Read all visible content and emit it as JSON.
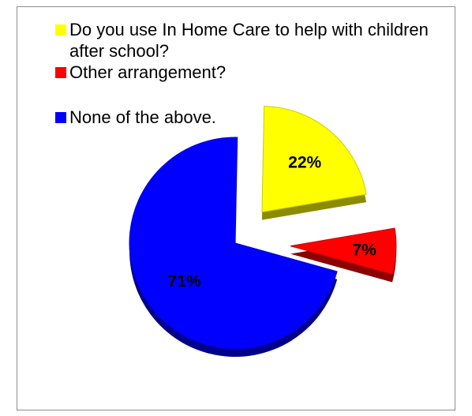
{
  "chart_data": {
    "type": "pie",
    "title": "",
    "categories": [
      "Do you use In Home Care to help with children after school?",
      "Other arrangement?",
      "None of the above."
    ],
    "values": [
      22,
      7,
      71
    ],
    "value_labels": [
      "22%",
      "7%",
      "71%"
    ],
    "colors": [
      "#ffff00",
      "#ff0000",
      "#0000ff"
    ],
    "legend_position": "top",
    "style": "3d-exploded"
  }
}
